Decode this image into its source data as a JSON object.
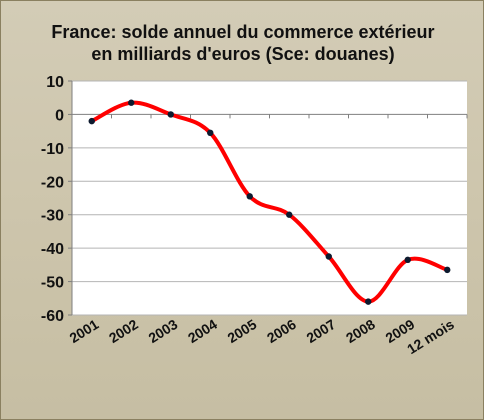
{
  "chart_data": {
    "type": "line",
    "title_lines": [
      "France: solde annuel du commerce extérieur",
      "en milliards d'euros (Sce: douanes)"
    ],
    "categories": [
      "2001",
      "2002",
      "2003",
      "2004",
      "2005",
      "2006",
      "2007",
      "2008",
      "2009",
      "12 mois"
    ],
    "series": [
      {
        "values": [
          -2,
          3.5,
          0,
          -5.5,
          -24.5,
          -30,
          -42.5,
          -56,
          -43.5,
          -46.5
        ],
        "color": "#ff0000",
        "marker_color": "#0d1a2e"
      }
    ],
    "ylim": [
      -60,
      10
    ],
    "yticks": [
      10,
      0,
      -10,
      -20,
      -30,
      -40,
      -50,
      -60
    ],
    "xlabel": "",
    "ylabel": "",
    "grid": true,
    "smooth": true
  },
  "colors": {
    "background": "#cdc5ac",
    "plot_area": "#ffffff",
    "gridline": "#b4b4b4",
    "axis": "#7f7f7f",
    "line": "#ff0000",
    "marker": "#0d1a2e"
  }
}
